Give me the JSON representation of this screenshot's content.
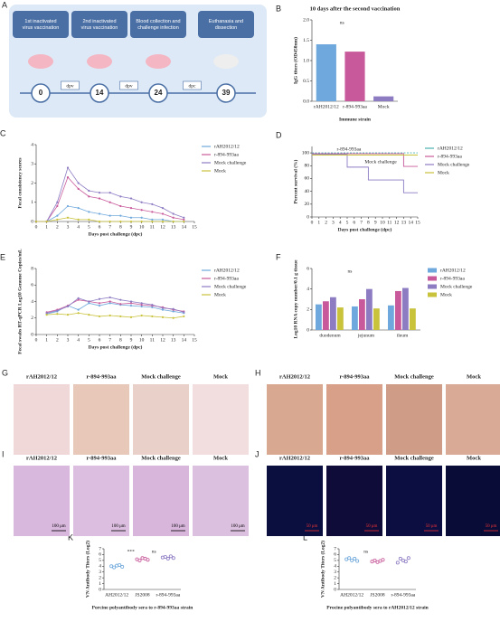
{
  "diagram": {
    "label": "A",
    "steps": [
      "1st inactivated virus vaccination",
      "2nd inactivated virus vaccination",
      "Blood collection and challenge infection",
      "Euthanasia and dissection"
    ],
    "days": [
      "0",
      "14",
      "24",
      "39"
    ],
    "intervals": [
      "dpv",
      "dpv",
      "dpc"
    ]
  },
  "chart_data": [
    {
      "type": "bar",
      "label": "B",
      "title": "10 days after the second vaccination",
      "ylabel": "IgG titers (OD450nm)",
      "xlabel": "Immune strain",
      "categories": [
        "rAH2012/12",
        "r-894-993aa",
        "Mock"
      ],
      "values": [
        1.4,
        1.22,
        0.12
      ],
      "colors": [
        "#6fa8dc",
        "#c85a9b",
        "#8e7cc3"
      ],
      "ylim": [
        0,
        2
      ],
      "yticks": [
        {
          "value": 0,
          "label": "0.0"
        },
        0.5,
        {
          "value": 1,
          "label": "1.0"
        },
        1.5,
        {
          "value": 2,
          "label": "2.0"
        }
      ],
      "annotations": [
        "ns"
      ]
    },
    {
      "type": "line",
      "label": "C",
      "ylabel": "Fecal consistency scores",
      "xlabel": "Days post challenge (dpc)",
      "x": [
        0,
        1,
        2,
        3,
        4,
        5,
        6,
        7,
        8,
        9,
        10,
        11,
        12,
        13,
        14
      ],
      "xlim": [
        0,
        15
      ],
      "xticks": [
        0,
        1,
        2,
        3,
        4,
        5,
        6,
        7,
        8,
        9,
        10,
        11,
        12,
        13,
        14,
        15
      ],
      "ylim": [
        0,
        4
      ],
      "yticks": [
        0,
        1,
        2,
        3,
        4
      ],
      "series": [
        {
          "name": "rAH2012/12",
          "color": "#6fa8dc",
          "values": [
            0,
            0,
            0.3,
            0.8,
            0.7,
            0.5,
            0.4,
            0.3,
            0.3,
            0.2,
            0.2,
            0.1,
            0.1,
            0,
            0
          ]
        },
        {
          "name": "r-894-993aa",
          "color": "#c85a9b",
          "values": [
            0,
            0,
            0.8,
            2.3,
            1.7,
            1.3,
            1.2,
            1.0,
            0.8,
            0.7,
            0.6,
            0.5,
            0.4,
            0.2,
            0.1
          ]
        },
        {
          "name": "Mock challenge",
          "color": "#8e7cc3",
          "values": [
            0,
            0,
            1.0,
            2.8,
            2.0,
            1.6,
            1.5,
            1.5,
            1.3,
            1.2,
            1.0,
            0.9,
            0.7,
            0.4,
            0.2
          ]
        },
        {
          "name": "Mock",
          "color": "#c9c23b",
          "values": [
            0,
            0,
            0.1,
            0.2,
            0.1,
            0.1,
            0,
            0,
            0,
            0,
            0,
            0,
            0,
            0,
            0
          ]
        }
      ]
    },
    {
      "type": "step",
      "label": "D",
      "ylabel": "Percent survival (%)",
      "xlabel": "Days post challenge (dpc)",
      "x": [
        0,
        5,
        8,
        13,
        15
      ],
      "xlim": [
        0,
        15
      ],
      "xticks": [
        0,
        1,
        2,
        3,
        4,
        5,
        6,
        7,
        8,
        9,
        10,
        11,
        12,
        13,
        14,
        15
      ],
      "ylim": [
        0,
        110
      ],
      "yticks": [
        0,
        20,
        40,
        60,
        80,
        100
      ],
      "annotations": [
        "r-894-993aa",
        "Mock challenge"
      ],
      "series": [
        {
          "name": "rAH2012/12",
          "color": "#4ab0b0",
          "values": [
            100,
            100,
            100,
            100,
            100
          ]
        },
        {
          "name": "r-894-993aa",
          "color": "#c85a9b",
          "values": [
            100,
            100,
            100,
            80,
            80
          ]
        },
        {
          "name": "Mock challenge",
          "color": "#8e7cc3",
          "values": [
            100,
            80,
            60,
            40,
            40
          ]
        },
        {
          "name": "Mock",
          "color": "#c9c23b",
          "values": [
            100,
            100,
            100,
            100,
            100
          ]
        }
      ]
    },
    {
      "type": "line",
      "label": "E",
      "ylabel": "Fecal swabs RT-qPCR Log10 Genome Copies/mL",
      "xlabel": "Days post challenge (dpc)",
      "x": [
        1,
        2,
        3,
        4,
        5,
        6,
        7,
        8,
        9,
        10,
        11,
        12,
        13,
        14
      ],
      "xlim": [
        0,
        15
      ],
      "xticks": [
        0,
        1,
        2,
        3,
        4,
        5,
        6,
        7,
        8,
        9,
        10,
        11,
        12,
        13,
        14,
        15
      ],
      "ylim": [
        0,
        8
      ],
      "yticks": [
        0,
        2,
        4,
        6,
        8
      ],
      "series": [
        {
          "name": "rAH2012/12",
          "color": "#6fa8dc",
          "values": [
            2.5,
            2.8,
            3.5,
            3.0,
            3.8,
            3.5,
            3.8,
            3.6,
            3.5,
            3.4,
            3.3,
            3.0,
            2.8,
            2.6
          ]
        },
        {
          "name": "r-894-993aa",
          "color": "#c85a9b",
          "values": [
            2.7,
            3.0,
            3.5,
            4.2,
            4.0,
            3.8,
            4.0,
            3.7,
            3.8,
            3.6,
            3.5,
            3.3,
            3.0,
            2.8
          ]
        },
        {
          "name": "Mock challenge",
          "color": "#8e7cc3",
          "values": [
            2.6,
            2.9,
            3.4,
            4.4,
            4.0,
            4.3,
            4.5,
            4.2,
            4.0,
            3.8,
            3.6,
            3.2,
            3.1,
            2.7
          ]
        },
        {
          "name": "Mock",
          "color": "#c9c23b",
          "values": [
            2.4,
            2.5,
            2.4,
            2.6,
            2.4,
            2.2,
            2.3,
            2.2,
            2.1,
            2.3,
            2.2,
            2.1,
            2.0,
            2.2
          ]
        }
      ]
    },
    {
      "type": "grouped_bar",
      "label": "F",
      "ylabel": "Log10 RNA copy number/0.1 g tissue",
      "categories": [
        "duodenum",
        "jejunum",
        "ileum"
      ],
      "ylim": [
        0,
        6
      ],
      "yticks": [
        0,
        2,
        4,
        6
      ],
      "annotations": [
        "ns"
      ],
      "series": [
        {
          "name": "rAH2012/12",
          "color": "#6fa8dc",
          "values": [
            2.5,
            2.3,
            2.4
          ]
        },
        {
          "name": "r-894-993aa",
          "color": "#c85a9b",
          "values": [
            2.8,
            3.0,
            3.8
          ]
        },
        {
          "name": "Mock challenge",
          "color": "#8e7cc3",
          "values": [
            3.2,
            4.0,
            4.1
          ]
        },
        {
          "name": "Mock",
          "color": "#c9c23b",
          "values": [
            2.2,
            2.1,
            2.1
          ]
        }
      ]
    },
    {
      "type": "dot",
      "label": "K",
      "ylabel": "VN Antibody Titers (Log2)",
      "xlabel": "Porcine polyantibody sera to r-894-993aa strain",
      "categories": [
        "AH2012/12",
        "JS2008",
        "r-894-993aa"
      ],
      "colors": [
        "#6fa8dc",
        "#c85a9b",
        "#8e7cc3"
      ],
      "ylim": [
        0,
        7
      ],
      "yticks": [
        0,
        1,
        2,
        3,
        4,
        5,
        6,
        7
      ],
      "annotations": [
        "***",
        "ns"
      ],
      "values": [
        [
          4.0,
          3.8,
          4.1,
          4.2,
          3.9
        ],
        [
          5.2,
          5.0,
          5.4,
          5.3,
          5.1
        ],
        [
          5.5,
          5.6,
          5.3,
          5.7,
          5.4
        ]
      ]
    },
    {
      "type": "dot",
      "label": "L",
      "ylabel": "VN Antibody Titers (Log2)",
      "xlabel": "Procine polyantibody sera to rAH2012/12 strain",
      "categories": [
        "AH2012/12",
        "JS2008",
        "r-894-993aa"
      ],
      "colors": [
        "#6fa8dc",
        "#c85a9b",
        "#8e7cc3"
      ],
      "ylim": [
        0,
        7
      ],
      "yticks": [
        0,
        1,
        2,
        3,
        4,
        5,
        6,
        7
      ],
      "annotations": [
        "ns"
      ],
      "values": [
        [
          5.2,
          5.4,
          5.0,
          5.3,
          4.9
        ],
        [
          4.8,
          5.0,
          4.7,
          4.9,
          5.1
        ],
        [
          4.6,
          5.3,
          5.0,
          4.8,
          5.4
        ]
      ]
    }
  ],
  "images": [
    {
      "label": "G",
      "titles": [
        "rAH2012/12",
        "r-894-993aa",
        "Mock challenge",
        "Mock"
      ]
    },
    {
      "label": "H",
      "titles": [
        "rAH2012/12",
        "r-894-993aa",
        "Mock challenge",
        "Mock"
      ]
    },
    {
      "label": "I",
      "titles": [
        "rAH2012/12",
        "r-894-993aa",
        "Mock challenge",
        "Mock"
      ],
      "scale": "100 μm"
    },
    {
      "label": "J",
      "titles": [
        "rAH2012/12",
        "r-894-993aa",
        "Mock challenge",
        "Mock"
      ],
      "scale": "50 μm"
    }
  ]
}
